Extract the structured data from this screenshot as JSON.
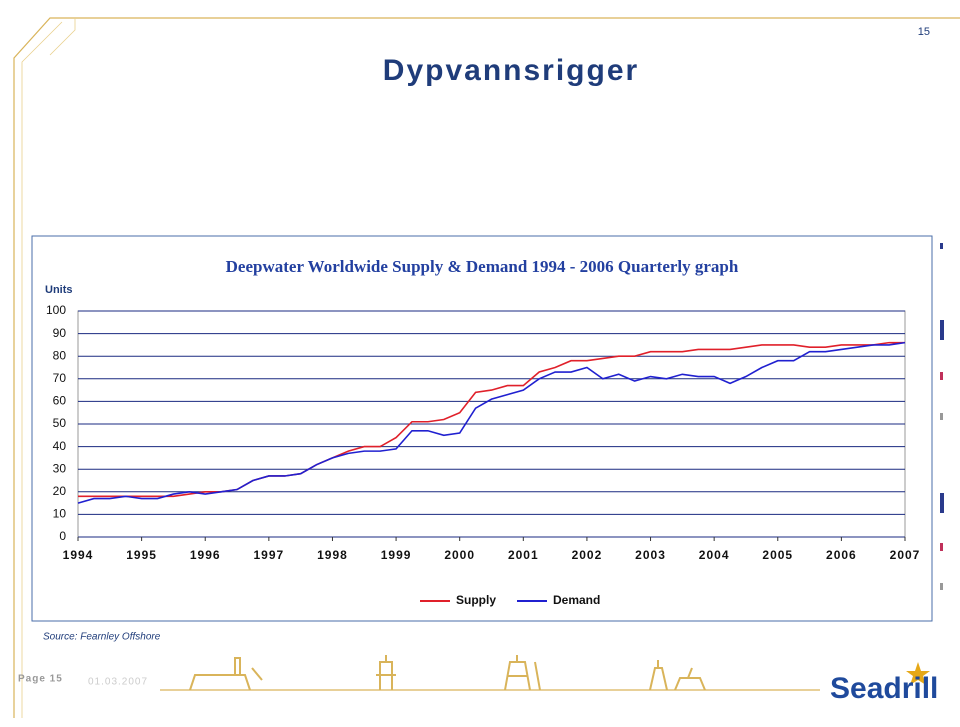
{
  "slide": {
    "page_number": "15",
    "title": "Dypvannsrigger",
    "source": "Source: Fearnley Offshore",
    "footer_page": "Page 15",
    "footer_date": "01.03.2007",
    "logo": "Seadrill"
  },
  "chart_data": {
    "type": "line",
    "title": "Deepwater Worldwide Supply & Demand 1994 - 2006 Quarterly graph",
    "y_label": "Units",
    "x": [
      1994,
      1994.25,
      1994.5,
      1994.75,
      1995,
      1995.25,
      1995.5,
      1995.75,
      1996,
      1996.25,
      1996.5,
      1996.75,
      1997,
      1997.25,
      1997.5,
      1997.75,
      1998,
      1998.25,
      1998.5,
      1998.75,
      1999,
      1999.25,
      1999.5,
      1999.75,
      2000,
      2000.25,
      2000.5,
      2000.75,
      2001,
      2001.25,
      2001.5,
      2001.75,
      2002,
      2002.25,
      2002.5,
      2002.75,
      2003,
      2003.25,
      2003.5,
      2003.75,
      2004,
      2004.25,
      2004.5,
      2004.75,
      2005,
      2005.25,
      2005.5,
      2005.75,
      2006,
      2006.25,
      2006.5,
      2006.75,
      2007
    ],
    "series": [
      {
        "name": "Supply",
        "color": "#e0202a",
        "values": [
          18,
          18,
          18,
          18,
          18,
          18,
          18,
          19,
          20,
          20,
          21,
          25,
          27,
          27,
          28,
          32,
          35,
          38,
          40,
          40,
          44,
          51,
          51,
          52,
          55,
          64,
          65,
          67,
          67,
          73,
          75,
          78,
          78,
          79,
          80,
          80,
          82,
          82,
          82,
          83,
          83,
          83,
          84,
          85,
          85,
          85,
          84,
          84,
          85,
          85,
          85,
          86,
          86
        ]
      },
      {
        "name": "Demand",
        "color": "#2020d0",
        "values": [
          15,
          17,
          17,
          18,
          17,
          17,
          19,
          20,
          19,
          20,
          21,
          25,
          27,
          27,
          28,
          32,
          35,
          37,
          38,
          38,
          39,
          47,
          47,
          45,
          46,
          57,
          61,
          63,
          65,
          70,
          73,
          73,
          75,
          70,
          72,
          69,
          71,
          70,
          72,
          71,
          71,
          68,
          71,
          75,
          78,
          78,
          82,
          82,
          83,
          84,
          85,
          85,
          86
        ]
      }
    ],
    "xlim": [
      1994,
      2007
    ],
    "xticks": [
      1994,
      1995,
      1996,
      1997,
      1998,
      1999,
      2000,
      2001,
      2002,
      2003,
      2004,
      2005,
      2006,
      2007
    ],
    "ylim": [
      0,
      100
    ],
    "yticks": [
      0,
      10,
      20,
      30,
      40,
      50,
      60,
      70,
      80,
      90,
      100
    ],
    "grid": true
  }
}
